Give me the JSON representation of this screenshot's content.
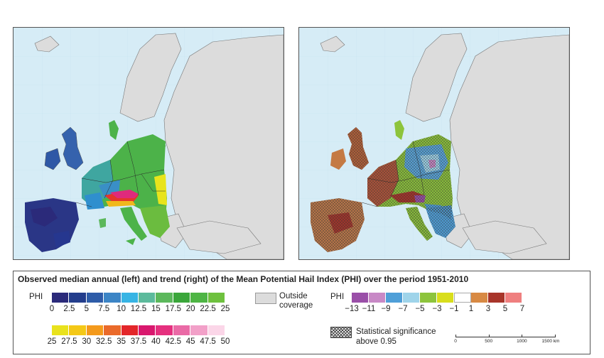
{
  "legend": {
    "title": "Observed median annual (left) and trend (right) of the Mean Potential Hail Index (PHI) over the period 1951-2010",
    "phi_label": "PHI",
    "median_scale_row1": {
      "colors": [
        "#2b2a7a",
        "#233d8c",
        "#2e5ca8",
        "#3c85c6",
        "#37b4e4",
        "#5cba9c",
        "#5cb85c",
        "#3aa63a",
        "#4eb544",
        "#6ec13e"
      ],
      "ticks": [
        "0",
        "2.5",
        "5",
        "7.5",
        "10",
        "12.5",
        "15",
        "17.5",
        "20",
        "22.5",
        "25"
      ]
    },
    "median_scale_row2": {
      "colors": [
        "#e9e21c",
        "#f4c816",
        "#f49a1c",
        "#ea6a2a",
        "#e3262a",
        "#d9186e",
        "#e5307e",
        "#ea6aa6",
        "#f2a0c8",
        "#fbd6e8"
      ],
      "ticks": [
        "25",
        "27.5",
        "30",
        "32.5",
        "35",
        "37.5",
        "40",
        "42.5",
        "45",
        "47.5",
        "50"
      ]
    },
    "outside_coverage_label": "Outside\ncoverage",
    "trend_label": "PHI",
    "trend_scale": {
      "colors": [
        "#9a4fa8",
        "#c889c6",
        "#4f9fd8",
        "#9fd4ea",
        "#8dc43c",
        "#d9de1c",
        "#ffffff",
        "#d88a44",
        "#a8352a",
        "#ef7f7f"
      ],
      "ticks": [
        "−13",
        "−11",
        "−9",
        "−7",
        "−5",
        "−3",
        "−1",
        "1",
        "3",
        "5",
        "7"
      ]
    },
    "significance_label": "Statistical significance\nabove 0.95",
    "scale_bar": {
      "ticks": [
        "0",
        "500",
        "1000",
        "1500 km"
      ]
    }
  },
  "colors": {
    "sea": "#d6ecf6",
    "land_outside": "#dcdcdc",
    "border": "#555555"
  }
}
